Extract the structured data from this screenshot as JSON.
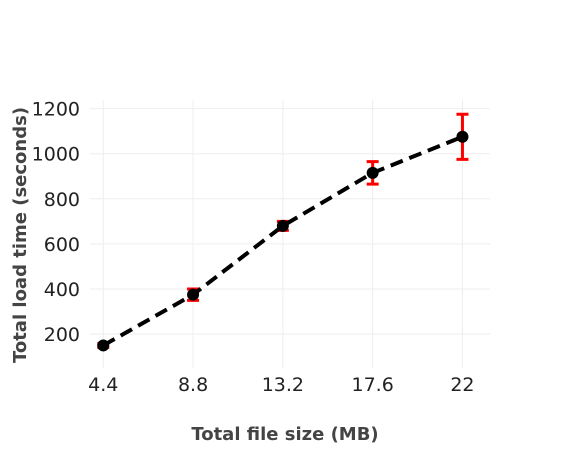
{
  "chart_data": {
    "type": "line",
    "title": "",
    "xlabel": "Total file size (MB)",
    "ylabel": "Total load time (seconds)",
    "x": [
      4.4,
      8.8,
      13.2,
      17.6,
      22
    ],
    "x_tick_labels": [
      "4.4",
      "8.8",
      "13.2",
      "17.6",
      "22"
    ],
    "y_tick_labels": [
      "200",
      "400",
      "600",
      "800",
      "1000",
      "1200"
    ],
    "y_ticks": [
      200,
      400,
      600,
      800,
      1000,
      1200
    ],
    "series": [
      {
        "values": [
          150,
          375,
          680,
          915,
          1075
        ],
        "error": [
          8,
          25,
          20,
          50,
          100
        ]
      }
    ],
    "xlim": [
      3.75,
      23.35
    ],
    "ylim": [
      50,
      1238
    ],
    "grid": true,
    "colors": {
      "line": "#000000",
      "points": "#000000",
      "error_bars": "#ff0000",
      "grid": "#eeeeee"
    }
  }
}
